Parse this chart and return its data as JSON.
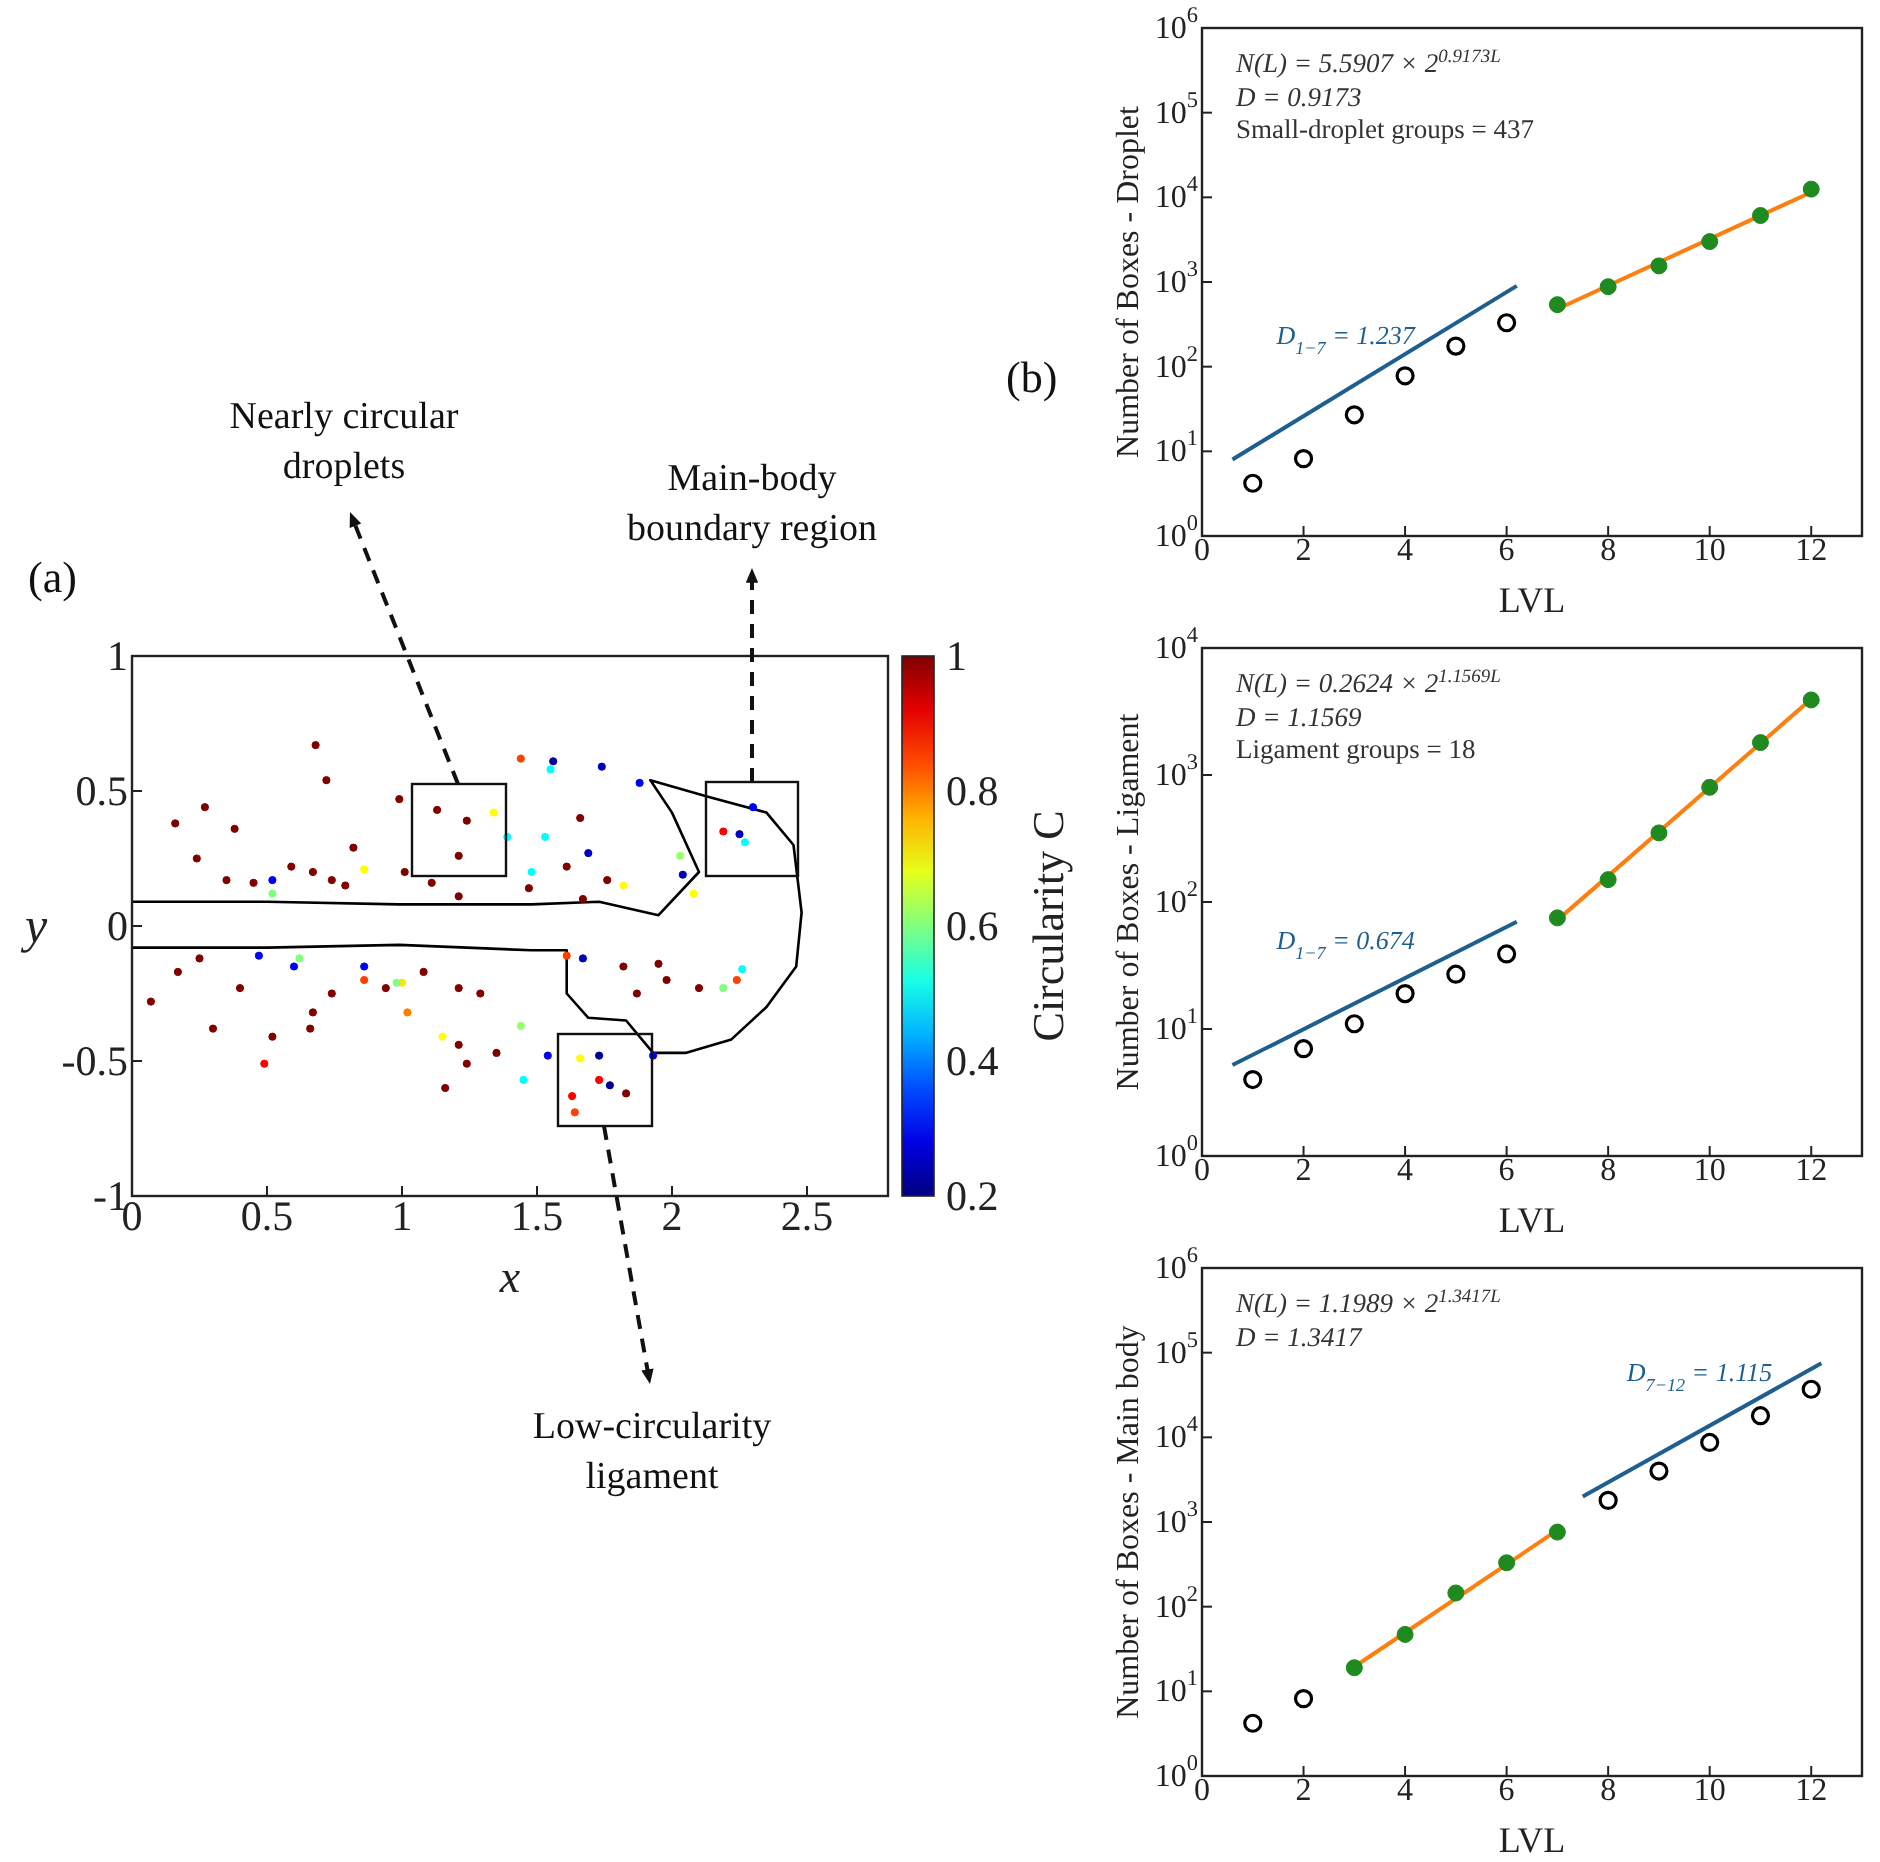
{
  "chart_data": [
    {
      "type": "scatter",
      "title": "(a)",
      "xlabel": "x",
      "ylabel": "y",
      "clabel": "Circularity C",
      "xlim": [
        0,
        2.8
      ],
      "xticks": [
        0,
        0.5,
        1,
        1.5,
        2,
        2.5
      ],
      "ylim": [
        -1,
        1
      ],
      "yticks": [
        -1,
        -0.5,
        0,
        0.5,
        1
      ],
      "clim": [
        0.2,
        1
      ],
      "cticks": [
        0.2,
        0.4,
        0.6,
        0.8,
        1
      ],
      "line_style": "solid",
      "annotations": [
        "Nearly circular droplets",
        "Main-body boundary region",
        "Low-circularity ligament"
      ],
      "series": [
        {
          "marker": "circle",
          "colors": [
            "#800000",
            "#800000",
            "#800000",
            "#800000",
            "#800000",
            "#800000",
            "#ff0000",
            "#800000",
            "#800000",
            "#800000",
            "#800000",
            "#ffff00",
            "#0000ff",
            "#0000ff",
            "#ff4000",
            "#ffe600",
            "#ff8000",
            "#800000",
            "#800000",
            "#800000",
            "#ffff00",
            "#00ffff",
            "#ff4000",
            "#000099",
            "#00ffff",
            "#0000bf",
            "#0000bf",
            "#00ffff",
            "#00ffff",
            "#800000",
            "#800000",
            "#ffff00",
            "#0000ff",
            "#0000bf",
            "#99ff66",
            "#ffff00",
            "#ff0000",
            "#0000bf",
            "#00ffff",
            "#0000ff",
            "#00ffff",
            "#80ff80",
            "#ff4000",
            "#0000bf",
            "#ff4000",
            "#000099",
            "#000099",
            "#0000ff",
            "#ffff00",
            "#ff0000",
            "#ff4000",
            "#ff0000",
            "#800000",
            "#0000ff",
            "#99ff66",
            "#00ffff",
            "#800000",
            "#800000",
            "#800000",
            "#800000",
            "#ffff00",
            "#800000",
            "#800000",
            "#800000",
            "#800000",
            "#80ff80",
            "#0000ff",
            "#80ff80",
            "#0000ff",
            "#80ff80",
            "#800000",
            "#800000",
            "#800000",
            "#800000",
            "#800000",
            "#800000",
            "#800000",
            "#800000",
            "#800000",
            "#800000",
            "#800000",
            "#800000",
            "#800000",
            "#800000",
            "#800000",
            "#800000",
            "#800000",
            "#800000",
            "#800000",
            "#800000",
            "#800000",
            "#800000",
            "#800000",
            "#800000"
          ],
          "x": [
            0.68,
            0.72,
            0.16,
            0.27,
            0.38,
            0.24,
            0.49,
            0.52,
            0.66,
            0.07,
            0.3,
            0.86,
            0.52,
            0.86,
            0.86,
            1.0,
            1.02,
            1.13,
            1.24,
            1.21,
            1.34,
            1.39,
            1.44,
            1.56,
            1.55,
            1.74,
            1.69,
            1.53,
            1.48,
            1.66,
            1.76,
            1.82,
            1.88,
            2.04,
            2.03,
            2.08,
            2.19,
            2.25,
            2.27,
            2.3,
            2.26,
            2.19,
            2.24,
            1.67,
            1.61,
            1.73,
            1.77,
            1.54,
            1.66,
            1.63,
            1.64,
            1.73,
            1.83,
            1.93,
            1.44,
            1.45,
            1.35,
            1.16,
            1.21,
            1.24,
            1.15,
            1.29,
            1.21,
            1.08,
            0.94,
            0.98,
            0.6,
            0.62,
            0.47,
            0.52,
            0.74,
            0.79,
            0.67,
            0.59,
            0.45,
            0.35,
            0.82,
            0.99,
            1.01,
            1.11,
            1.21,
            1.61,
            1.67,
            1.47,
            1.95,
            1.98,
            1.87,
            1.82,
            2.1,
            0.25,
            0.17,
            0.4,
            0.67,
            0.74
          ],
          "values": [
            0.67,
            0.54,
            0.38,
            0.44,
            0.36,
            0.25,
            -0.51,
            -0.41,
            -0.38,
            -0.28,
            -0.38,
            0.21,
            0.17,
            -0.15,
            -0.2,
            -0.21,
            -0.32,
            0.43,
            0.39,
            0.26,
            0.42,
            0.33,
            0.62,
            0.61,
            0.58,
            0.59,
            0.27,
            0.33,
            0.2,
            0.4,
            0.17,
            0.15,
            0.53,
            0.19,
            0.26,
            0.12,
            0.35,
            0.34,
            0.31,
            0.44,
            -0.16,
            -0.23,
            -0.2,
            -0.12,
            -0.11,
            -0.48,
            -0.59,
            -0.48,
            -0.49,
            -0.63,
            -0.69,
            -0.57,
            -0.62,
            -0.48,
            -0.37,
            -0.57,
            -0.47,
            -0.6,
            -0.44,
            -0.51,
            -0.41,
            -0.25,
            -0.23,
            -0.17,
            -0.23,
            -0.21,
            -0.15,
            -0.12,
            -0.11,
            0.12,
            0.17,
            0.15,
            0.2,
            0.22,
            0.16,
            0.17,
            0.29,
            0.47,
            0.2,
            0.16,
            0.11,
            0.22,
            0.1,
            0.14,
            -0.14,
            -0.2,
            -0.25,
            -0.15,
            -0.23,
            -0.12,
            -0.17,
            -0.23,
            -0.32,
            -0.25
          ],
          "cvalues": [
            1,
            1,
            1,
            1,
            1,
            1,
            0.9,
            1,
            1,
            1,
            1,
            0.7,
            0.3,
            0.3,
            0.85,
            0.72,
            0.8,
            1,
            1,
            1,
            0.7,
            0.5,
            0.85,
            0.22,
            0.5,
            0.25,
            0.25,
            0.5,
            0.5,
            1,
            1,
            0.7,
            0.3,
            0.25,
            0.62,
            0.7,
            0.9,
            0.25,
            0.5,
            0.3,
            0.5,
            0.6,
            0.85,
            0.25,
            0.85,
            0.22,
            0.22,
            0.3,
            0.7,
            0.9,
            0.85,
            0.9,
            1,
            0.3,
            0.62,
            0.5,
            1,
            1,
            1,
            1,
            0.7,
            1,
            1,
            1,
            1,
            0.6,
            0.3,
            0.6,
            0.3,
            0.6,
            1,
            1,
            1,
            1,
            1,
            1,
            1,
            1,
            1,
            1,
            1,
            1,
            1,
            1,
            1,
            1,
            1,
            1,
            1,
            1,
            1,
            1,
            1,
            1
          ]
        },
        {
          "type": "line",
          "marker": "none",
          "color": "#000000",
          "x": [
            0,
            0.5,
            0.99,
            1.48,
            1.73,
            1.95,
            2.1,
            2.0,
            1.92,
            2.13,
            2.35,
            2.45,
            2.48,
            2.46,
            2.35,
            2.22,
            2.05,
            1.93,
            1.83,
            1.69,
            1.61,
            1.61,
            1.48,
            0.99,
            0.5,
            0
          ],
          "values": [
            0.09,
            0.09,
            0.08,
            0.08,
            0.09,
            0.04,
            0.2,
            0.42,
            0.54,
            0.48,
            0.42,
            0.3,
            0.05,
            -0.15,
            -0.3,
            -0.42,
            -0.47,
            -0.47,
            -0.35,
            -0.34,
            -0.25,
            -0.09,
            -0.09,
            -0.07,
            -0.08,
            -0.08
          ]
        }
      ]
    },
    {
      "type": "scatter",
      "title": "(b)",
      "xlabel": "LVL",
      "ylabel": "Number of Boxes - Droplet",
      "xlim": [
        0,
        13
      ],
      "xticks": [
        0,
        2,
        4,
        6,
        8,
        10,
        12
      ],
      "ylim": [
        1,
        1000000
      ],
      "yticks": [
        {
          "value": 1,
          "label": "10$^{0}$"
        },
        {
          "value": 10,
          "label": "10$^{1}$"
        },
        {
          "value": 100,
          "label": "10$^{2}$"
        },
        {
          "value": 1000,
          "label": "10$^{3}$"
        },
        {
          "value": 10000,
          "label": "10$^{4}$"
        },
        {
          "value": 100000,
          "label": "10$^{5}$"
        },
        {
          "value": 1000000,
          "label": "10$^{6}$"
        }
      ],
      "log": "y",
      "line_style": "solid",
      "annotations": [
        "N(L) = 5.5907 × 2$^{0.9173L}$",
        "D = 0.9173",
        "Small-droplet groups = 437"
      ],
      "series": [
        {
          "marker": "circle",
          "color": "#000000",
          "x": [
            1,
            2,
            3,
            4,
            5,
            6
          ],
          "values": [
            4.2,
            8.2,
            27,
            78,
            175,
            330
          ]
        },
        {
          "marker": "circle",
          "color": "#1f8a1f",
          "x": [
            7,
            8,
            9,
            10,
            11,
            12
          ],
          "values": [
            540,
            880,
            1550,
            3000,
            6100,
            12500
          ]
        },
        {
          "type": "line",
          "marker": "none",
          "color": "#ff7f0e",
          "x": [
            7,
            12
          ],
          "values": [
            480,
            11500
          ]
        },
        {
          "type": "line",
          "marker": "none",
          "name": "D$_{1−7}$ = 1.237",
          "color": "#1f5f8f",
          "x": [
            0.6,
            6.2
          ],
          "values": [
            8,
            900
          ]
        }
      ]
    },
    {
      "type": "scatter",
      "xlabel": "LVL",
      "ylabel": "Number of Boxes - Ligament",
      "xlim": [
        0,
        13
      ],
      "xticks": [
        0,
        2,
        4,
        6,
        8,
        10,
        12
      ],
      "ylim": [
        1,
        10000
      ],
      "yticks": [
        {
          "value": 1,
          "label": "10$^{0}$"
        },
        {
          "value": 10,
          "label": "10$^{1}$"
        },
        {
          "value": 100,
          "label": "10$^{2}$"
        },
        {
          "value": 1000,
          "label": "10$^{3}$"
        },
        {
          "value": 10000,
          "label": "10$^{4}$"
        }
      ],
      "log": "y",
      "line_style": "solid",
      "annotations": [
        "N(L) = 0.2624 × 2$^{1.1569L}$",
        "D = 1.1569",
        "Ligament groups = 18"
      ],
      "series": [
        {
          "marker": "circle",
          "color": "#000000",
          "x": [
            1,
            2,
            3,
            4,
            5,
            6
          ],
          "values": [
            4,
            7,
            11,
            19,
            27,
            39
          ]
        },
        {
          "marker": "circle",
          "color": "#1f8a1f",
          "x": [
            7,
            8,
            9,
            10,
            11,
            12
          ],
          "values": [
            75,
            150,
            350,
            800,
            1800,
            3900
          ]
        },
        {
          "type": "line",
          "marker": "none",
          "color": "#ff7f0e",
          "x": [
            7,
            12
          ],
          "values": [
            72,
            3960
          ]
        },
        {
          "type": "line",
          "marker": "none",
          "name": "D$_{1−7}$ = 0.674",
          "color": "#1f5f8f",
          "x": [
            0.6,
            6.2
          ],
          "values": [
            5.2,
            70
          ]
        }
      ]
    },
    {
      "type": "scatter",
      "xlabel": "LVL",
      "ylabel": "Number of Boxes - Main body",
      "xlim": [
        0,
        13
      ],
      "xticks": [
        0,
        2,
        4,
        6,
        8,
        10,
        12
      ],
      "ylim": [
        1,
        1000000
      ],
      "yticks": [
        {
          "value": 1,
          "label": "10$^{0}$"
        },
        {
          "value": 10,
          "label": "10$^{1}$"
        },
        {
          "value": 100,
          "label": "10$^{2}$"
        },
        {
          "value": 1000,
          "label": "10$^{3}$"
        },
        {
          "value": 10000,
          "label": "10$^{4}$"
        },
        {
          "value": 100000,
          "label": "10$^{5}$"
        },
        {
          "value": 1000000,
          "label": "10$^{6}$"
        }
      ],
      "log": "y",
      "line_style": "solid",
      "annotations": [
        "N(L) = 1.1989 × 2$^{1.3417L}$",
        "D = 1.3417"
      ],
      "series": [
        {
          "marker": "circle",
          "color": "#000000",
          "x": [
            1,
            2,
            8,
            9,
            10,
            11,
            12
          ],
          "values": [
            4.2,
            8.2,
            1800,
            4000,
            8700,
            18000,
            37000
          ]
        },
        {
          "marker": "circle",
          "color": "#1f8a1f",
          "x": [
            3,
            4,
            5,
            6,
            7
          ],
          "values": [
            19,
            47,
            145,
            330,
            760
          ]
        },
        {
          "type": "line",
          "marker": "none",
          "color": "#ff7f0e",
          "x": [
            3,
            7
          ],
          "values": [
            19.5,
            800
          ]
        },
        {
          "type": "line",
          "marker": "none",
          "name": "D$_{7−12}$ = 1.115",
          "color": "#1f5f8f",
          "x": [
            7.5,
            12.2
          ],
          "values": [
            2000,
            75000
          ]
        }
      ]
    }
  ]
}
